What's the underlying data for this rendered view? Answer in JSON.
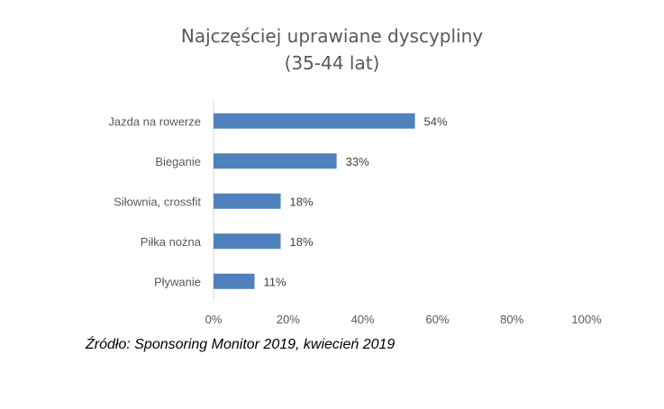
{
  "chart_data": {
    "type": "bar",
    "orientation": "horizontal",
    "title": "Najczęściej uprawiane dyscypliny",
    "subtitle": "(35-44  lat)",
    "categories": [
      "Jazda na rowerze",
      "Bieganie",
      "Siłownia, crossfit",
      "Piłka nożna",
      "Pływanie"
    ],
    "values": [
      54,
      33,
      18,
      18,
      11
    ],
    "data_labels": [
      "54%",
      "33%",
      "18%",
      "18%",
      "11%"
    ],
    "xlim": [
      0,
      100
    ],
    "x_ticks": [
      "0%",
      "20%",
      "40%",
      "60%",
      "80%",
      "100%"
    ],
    "grid": false,
    "bar_color": "#4f81bd"
  },
  "source": "Źródło:  Sponsoring  Monitor 2019,  kwiecień 2019"
}
